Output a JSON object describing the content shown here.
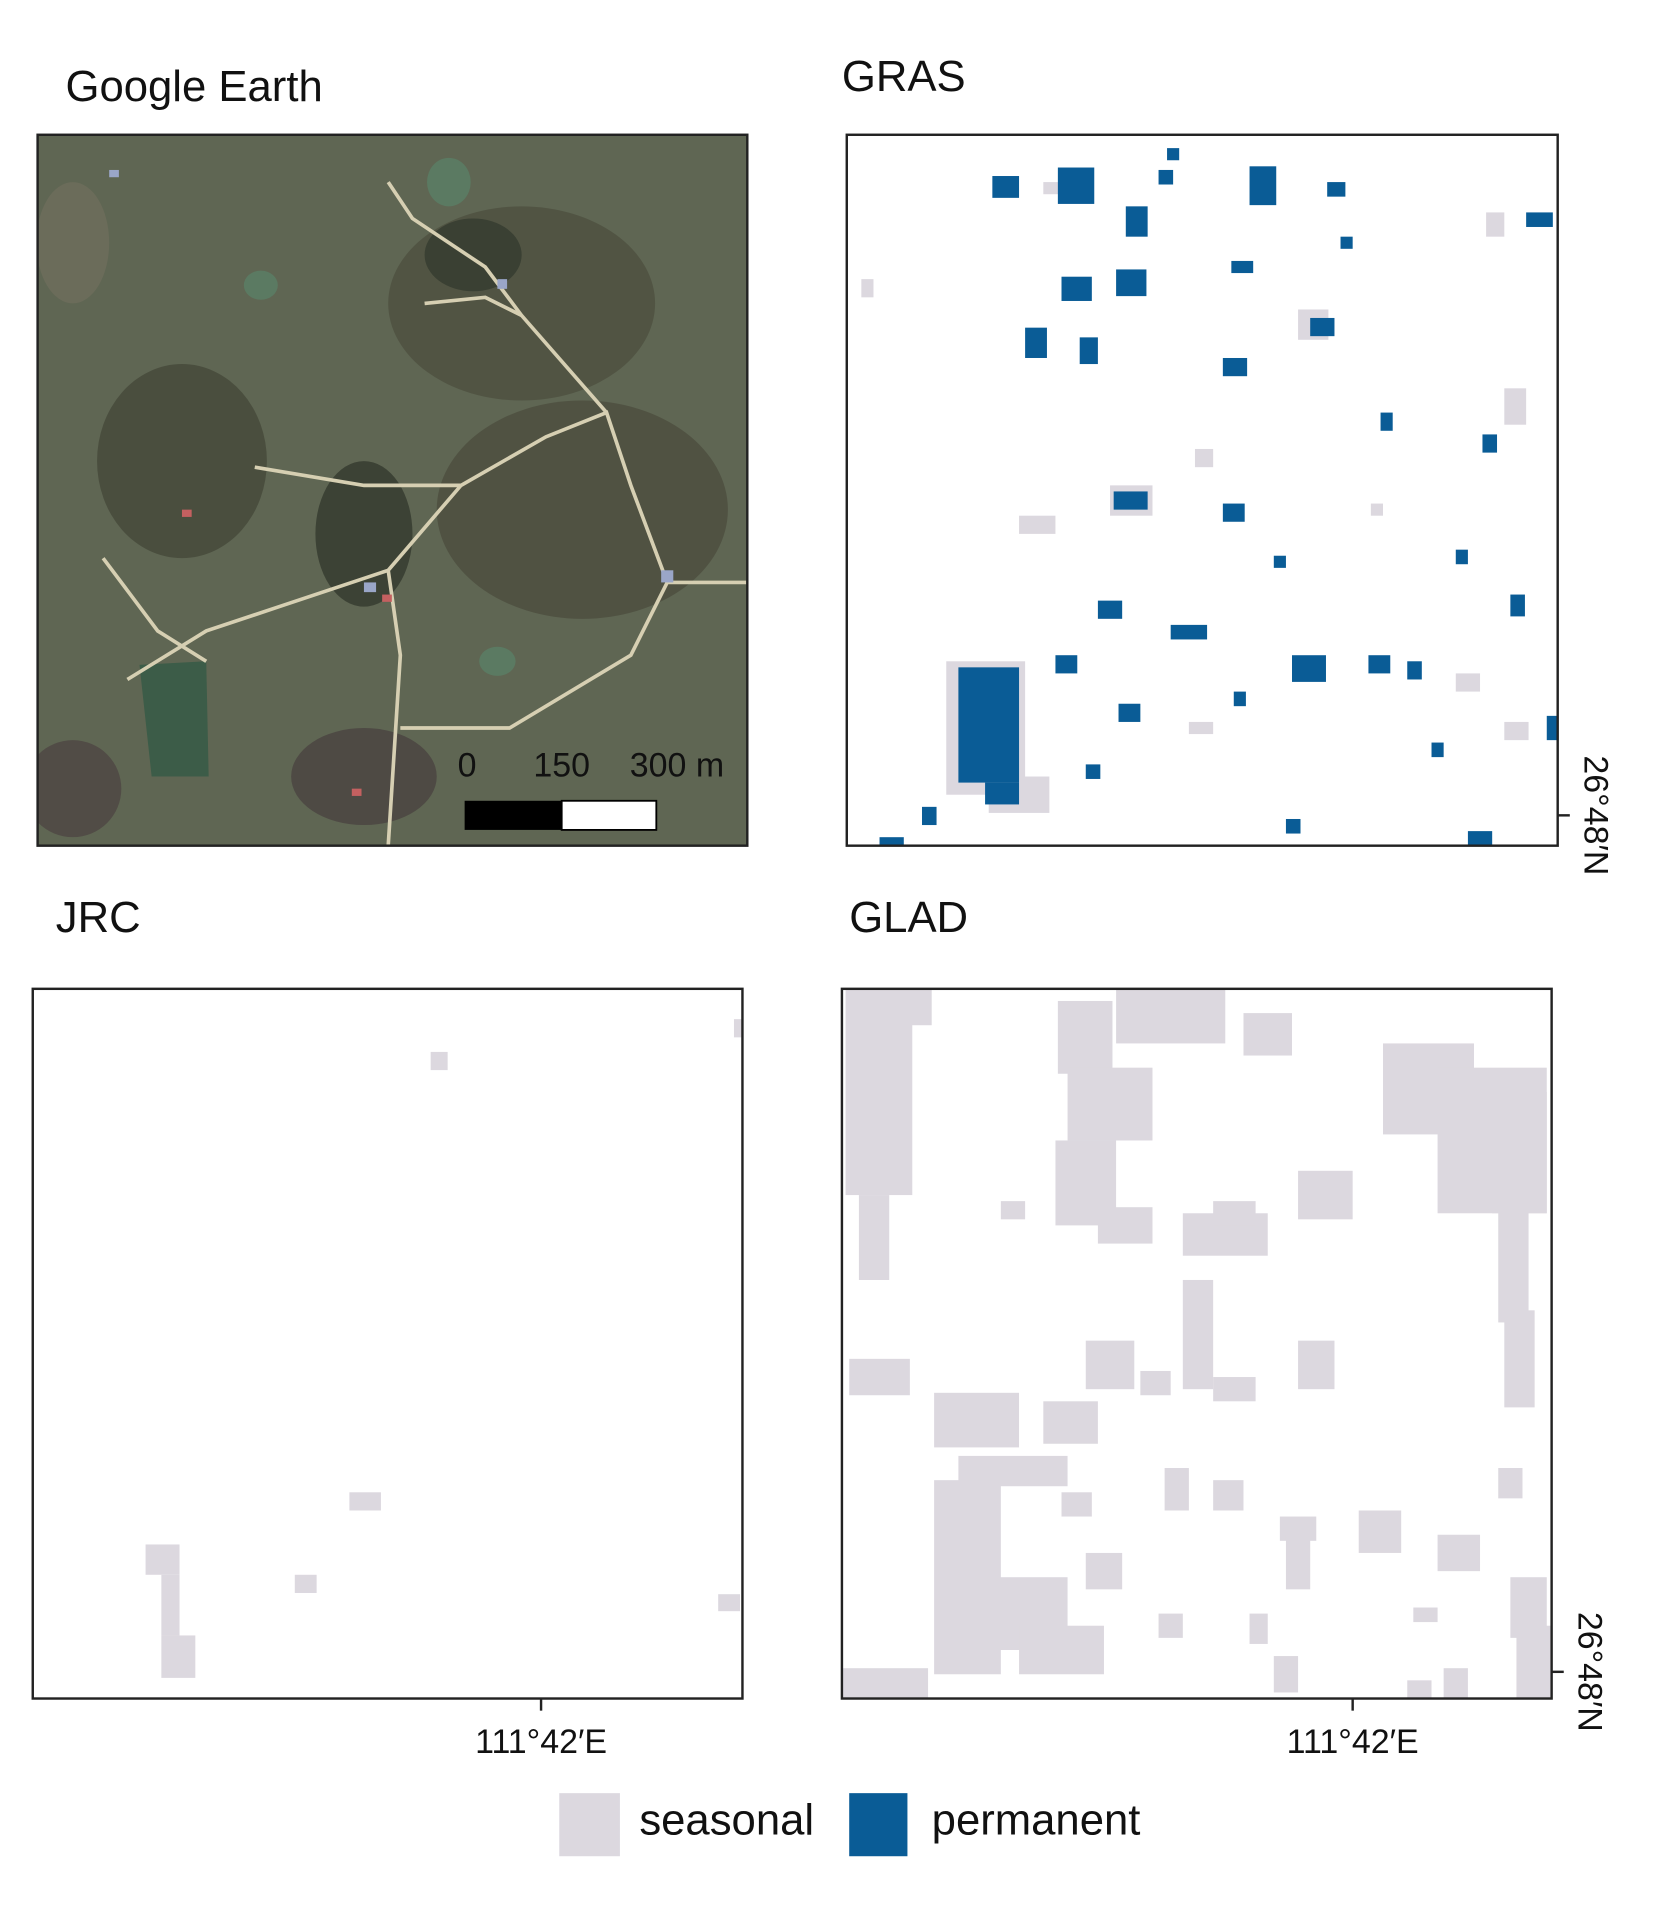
{
  "panels": [
    {
      "title": "Google Earth"
    },
    {
      "title": "GRAS"
    },
    {
      "title": "JRC"
    },
    {
      "title": "GLAD"
    }
  ],
  "scale_bar": {
    "labels": [
      "0",
      "150",
      "300 m"
    ]
  },
  "axis_labels": {
    "latitude": "26°48′N",
    "longitude": "111°42′E"
  },
  "legend": {
    "items": [
      "seasonal",
      "permanent"
    ]
  }
}
